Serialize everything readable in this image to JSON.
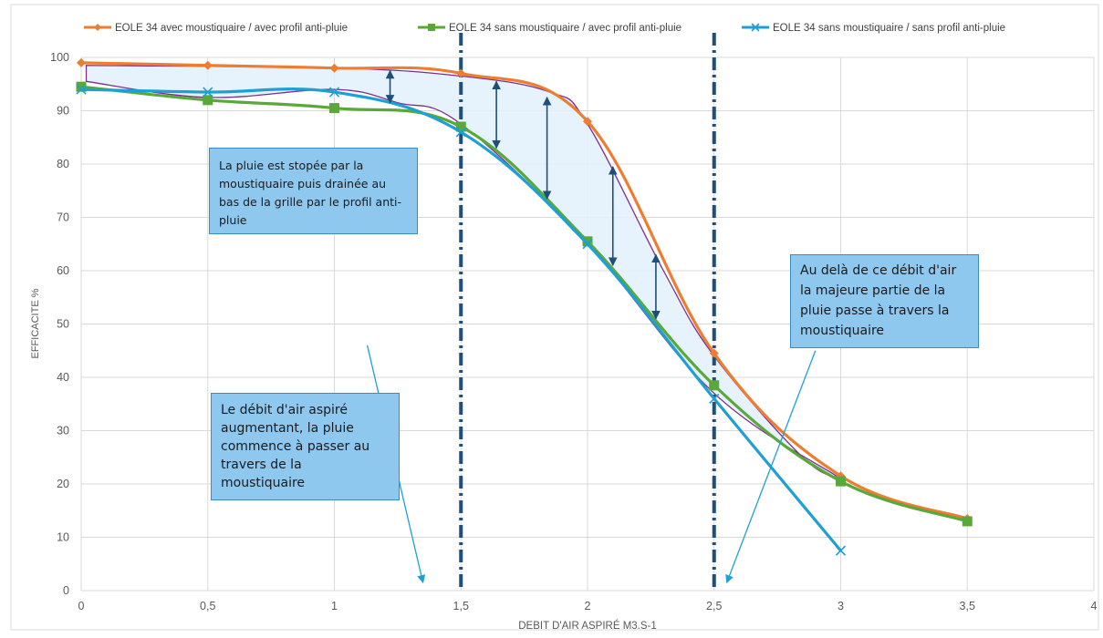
{
  "chart_data": {
    "type": "line",
    "xlabel": "DEBIT D'AIR ASPIRÉ M3.S-1",
    "ylabel": "EFFICACITE  %",
    "xlim": [
      0,
      4
    ],
    "ylim": [
      0,
      100
    ],
    "x_ticks": [
      0,
      0.5,
      1,
      1.5,
      2,
      2.5,
      3,
      3.5,
      4
    ],
    "x_tick_labels": [
      "0",
      "0,5",
      "1",
      "1,5",
      "2",
      "2,5",
      "3",
      "3,5",
      "4"
    ],
    "y_ticks": [
      0,
      10,
      20,
      30,
      40,
      50,
      60,
      70,
      80,
      90,
      100
    ],
    "y_tick_labels": [
      "0",
      "10",
      "20",
      "30",
      "40",
      "50",
      "60",
      "70",
      "80",
      "90",
      "100"
    ],
    "grid": true,
    "legend_position": "top",
    "series": [
      {
        "name": "EOLE 34 avec moustiquaire / avec profil anti-pluie",
        "color": "#ed7d31",
        "marker": "diamond",
        "x": [
          0,
          0.5,
          1,
          1.5,
          2,
          2.5,
          3,
          3.5
        ],
        "y": [
          99,
          98.5,
          98,
          97,
          88,
          44.5,
          21.5,
          13.5
        ]
      },
      {
        "name": "EOLE 34  sans moustiquaire / avec profil anti-pluie",
        "color": "#5aa83a",
        "marker": "square",
        "x": [
          0,
          0.5,
          1,
          1.5,
          2,
          2.5,
          3,
          3.5
        ],
        "y": [
          94.5,
          92,
          90.5,
          87,
          65.5,
          38.5,
          20.5,
          13
        ]
      },
      {
        "name": "EOLE 34  sans moustiquaire / sans profil anti-pluie",
        "color": "#1ea0d4",
        "marker": "x",
        "x": [
          0,
          0.5,
          1,
          1.5,
          2,
          2.5,
          3
        ],
        "y": [
          94,
          93.5,
          93.5,
          86,
          65,
          36,
          7.5
        ]
      }
    ],
    "annotations": {
      "callout_1": "La pluie est stopée par la moustiquaire puis drainée au bas de la grille par le profil anti-pluie",
      "callout_2": "Le débit d'air aspiré augmentant, la pluie commence à passer au travers de la moustiquaire",
      "callout_3": "Au delà de ce débit d'air la majeure partie de la pluie passe à travers la moustiquaire"
    },
    "reference_lines_x": [
      1.5,
      2.5
    ],
    "highlight_band": {
      "upper": [
        [
          0.02,
          98.5
        ],
        [
          1,
          98
        ],
        [
          1.5,
          96.5
        ],
        [
          1.85,
          93.5
        ],
        [
          2,
          87.5
        ],
        [
          2.3,
          60
        ],
        [
          2.5,
          44
        ],
        [
          2.85,
          25
        ],
        [
          3,
          21
        ]
      ],
      "lower": [
        [
          3,
          21
        ],
        [
          2.5,
          37
        ],
        [
          2,
          65
        ],
        [
          1.5,
          87.5
        ],
        [
          1.25,
          91.5
        ],
        [
          1,
          94
        ],
        [
          0.5,
          92.5
        ],
        [
          0.02,
          95.5
        ]
      ]
    },
    "arrows": [
      {
        "x": 1.22,
        "from": 97.5,
        "to": 91.5
      },
      {
        "x": 1.64,
        "from": 95.5,
        "to": 83
      },
      {
        "x": 1.84,
        "from": 92.5,
        "to": 73.5
      },
      {
        "x": 2.1,
        "from": 79.5,
        "to": 61
      },
      {
        "x": 2.27,
        "from": 63,
        "to": 51
      }
    ],
    "pointer_lines": [
      {
        "from": [
          1.1,
          82
        ],
        "to": [
          0.87,
          71.5
        ]
      },
      {
        "from": [
          1.13,
          46
        ],
        "to": [
          1.35,
          1.5
        ]
      },
      {
        "from": [
          2.9,
          45
        ],
        "to": [
          2.55,
          1.5
        ]
      }
    ]
  }
}
